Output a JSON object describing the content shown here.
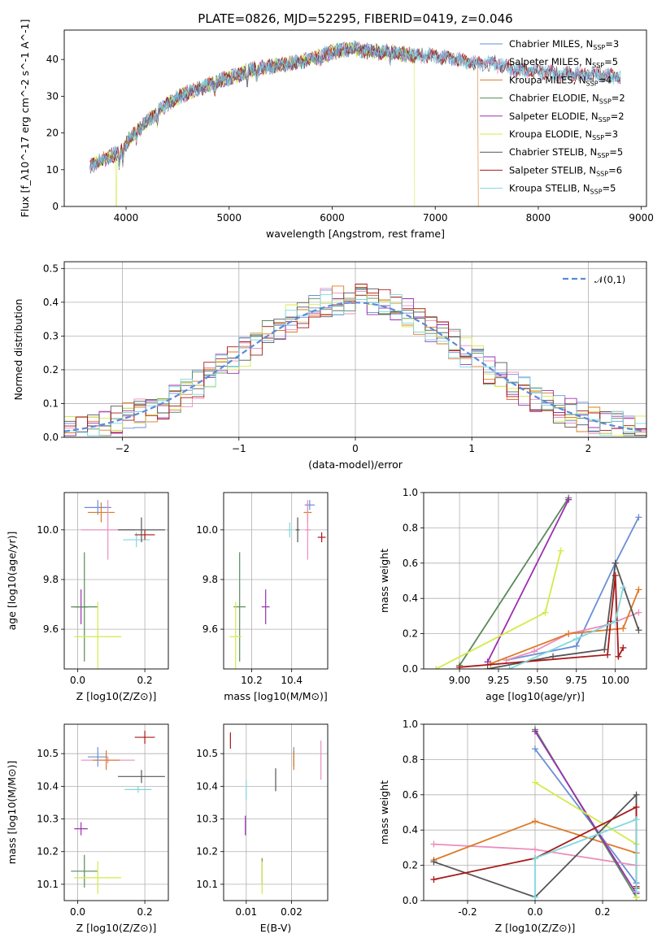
{
  "title": "PLATE=0826, MJD=52295, FIBERID=0419, z=0.046",
  "colors": {
    "chabrier_miles": "#6b8ed6",
    "salpeter_miles": "#ea8fbd",
    "kroupa_miles": "#dd7a28",
    "chabrier_elodie": "#5a8a5a",
    "salpeter_elodie": "#9b30b0",
    "kroupa_elodie": "#d4ea48",
    "chabrier_stelib": "#555555",
    "salpeter_stelib": "#a81818",
    "kroupa_stelib": "#7fd8de"
  },
  "models": [
    {
      "key": "chabrier_miles",
      "imf": "Chabrier",
      "lib": "MILES",
      "nssp": "3"
    },
    {
      "key": "salpeter_miles",
      "imf": "Salpeter",
      "lib": "MILES",
      "nssp": "5"
    },
    {
      "key": "kroupa_miles",
      "imf": "Kroupa",
      "lib": "MILES",
      "nssp": "4"
    },
    {
      "key": "chabrier_elodie",
      "imf": "Chabrier",
      "lib": "ELODIE",
      "nssp": "2"
    },
    {
      "key": "salpeter_elodie",
      "imf": "Salpeter",
      "lib": "ELODIE",
      "nssp": "2"
    },
    {
      "key": "kroupa_elodie",
      "imf": "Kroupa",
      "lib": "ELODIE",
      "nssp": "3"
    },
    {
      "key": "chabrier_stelib",
      "imf": "Chabrier",
      "lib": "STELIB",
      "nssp": "5"
    },
    {
      "key": "salpeter_stelib",
      "imf": "Salpeter",
      "lib": "STELIB",
      "nssp": "6"
    },
    {
      "key": "kroupa_stelib",
      "imf": "Kroupa",
      "lib": "STELIB",
      "nssp": "5"
    }
  ],
  "chart_data": [
    {
      "type": "line",
      "xlabel": "wavelength [Angstrom, rest frame]",
      "ylabel": "Flux [f_λ10^-17 erg cm^-2 s^-1 A^-1]",
      "xlim": [
        3400,
        9050
      ],
      "ylim": [
        0,
        48
      ],
      "xticks": [
        4000,
        5000,
        6000,
        7000,
        8000,
        9000
      ],
      "yticks": [
        0,
        10,
        20,
        30,
        40
      ],
      "continuum": [
        [
          3650,
          11
        ],
        [
          3800,
          13
        ],
        [
          3950,
          15
        ],
        [
          4050,
          19
        ],
        [
          4200,
          23
        ],
        [
          4400,
          28
        ],
        [
          4600,
          31
        ],
        [
          4800,
          33
        ],
        [
          5000,
          35
        ],
        [
          5200,
          37
        ],
        [
          5400,
          38
        ],
        [
          5600,
          39
        ],
        [
          5800,
          40
        ],
        [
          6000,
          42
        ],
        [
          6200,
          43
        ],
        [
          6400,
          42
        ],
        [
          6600,
          42
        ],
        [
          6800,
          41
        ],
        [
          7000,
          41
        ],
        [
          7200,
          40
        ],
        [
          7400,
          39
        ],
        [
          7600,
          39
        ],
        [
          7800,
          37
        ],
        [
          8000,
          37
        ],
        [
          8200,
          36
        ],
        [
          8400,
          36
        ],
        [
          8600,
          36
        ],
        [
          8800,
          35
        ]
      ],
      "dropouts": [
        {
          "model": "kroupa_elodie",
          "x": 3905
        },
        {
          "model": "kroupa_elodie",
          "x": 6800
        },
        {
          "model": "kroupa_miles",
          "x": 7420
        }
      ],
      "model_end": {
        "chabrier_miles": 8800,
        "salpeter_miles": 8800,
        "kroupa_miles": 7420,
        "chabrier_elodie": 6800,
        "salpeter_elodie": 6800,
        "kroupa_elodie": 6800,
        "chabrier_stelib": 8800,
        "salpeter_stelib": 8800,
        "kroupa_stelib": 8800
      }
    },
    {
      "type": "histogram",
      "xlabel": "(data-model)/error",
      "ylabel": "Normed distribution",
      "xlim": [
        -2.5,
        2.5
      ],
      "ylim": [
        0,
        0.52
      ],
      "xticks": [
        -2,
        -1,
        0,
        1,
        2
      ],
      "yticks": [
        0.0,
        0.1,
        0.2,
        0.3,
        0.4,
        0.5
      ],
      "legend": "𝒩(0,1)",
      "legend_position": "top-right",
      "bin_width": 0.1
    },
    {
      "type": "scatter",
      "xlabel": "Z [log10(Z/Z⊙)]",
      "ylabel": "age  [log10(age/yr)]",
      "xlim": [
        -0.04,
        0.27
      ],
      "ylim": [
        9.44,
        10.15
      ],
      "xticks": [
        0.0,
        0.2
      ],
      "yticks": [
        9.6,
        9.8,
        10.0
      ],
      "points": [
        {
          "model": "chabrier_miles",
          "x": 0.06,
          "y": 10.09,
          "xerr": 0.04,
          "yerr": 0.03
        },
        {
          "model": "kroupa_miles",
          "x": 0.07,
          "y": 10.07,
          "xerr": 0.04,
          "yerr": 0.04
        },
        {
          "model": "salpeter_miles",
          "x": 0.09,
          "y": 10.0,
          "xerr": 0.08,
          "yerr": 0.12
        },
        {
          "model": "kroupa_stelib",
          "x": 0.175,
          "y": 9.96,
          "xerr": 0.04,
          "yerr": 0.03
        },
        {
          "model": "salpeter_stelib",
          "x": 0.2,
          "y": 9.98,
          "xerr": 0.03,
          "yerr": 0.02
        },
        {
          "model": "chabrier_stelib",
          "x": 0.19,
          "y": 10.0,
          "xerr": 0.07,
          "yerr": 0.05
        },
        {
          "model": "salpeter_elodie",
          "x": 0.01,
          "y": 9.69,
          "xerr": 0.02,
          "yerr": 0.07
        },
        {
          "model": "chabrier_elodie",
          "x": 0.02,
          "y": 9.69,
          "xerr": 0.04,
          "yerr": 0.22
        },
        {
          "model": "kroupa_elodie",
          "x": 0.06,
          "y": 9.57,
          "xerr": 0.07,
          "yerr": 0.14
        }
      ]
    },
    {
      "type": "scatter",
      "xlabel": "mass [log10(M/M⊙)]",
      "ylabel": "",
      "xlim": [
        10.06,
        10.58
      ],
      "ylim": [
        9.44,
        10.15
      ],
      "xticks": [
        10.2,
        10.4
      ],
      "yticks": [
        9.6,
        9.8,
        10.0
      ],
      "points": [
        {
          "model": "chabrier_miles",
          "x": 10.49,
          "y": 10.1,
          "xerr": 0.025,
          "yerr": 0.02
        },
        {
          "model": "kroupa_miles",
          "x": 10.48,
          "y": 10.07,
          "xerr": 0.02,
          "yerr": 0.04
        },
        {
          "model": "salpeter_miles",
          "x": 10.48,
          "y": 10.0,
          "xerr": 0.015,
          "yerr": 0.12
        },
        {
          "model": "kroupa_stelib",
          "x": 10.39,
          "y": 10.0,
          "xerr": 0.015,
          "yerr": 0.03
        },
        {
          "model": "chabrier_stelib",
          "x": 10.43,
          "y": 10.0,
          "xerr": 0.01,
          "yerr": 0.05
        },
        {
          "model": "salpeter_stelib",
          "x": 10.55,
          "y": 9.97,
          "xerr": 0.02,
          "yerr": 0.02
        },
        {
          "model": "salpeter_elodie",
          "x": 10.27,
          "y": 9.69,
          "xerr": 0.02,
          "yerr": 0.07
        },
        {
          "model": "chabrier_elodie",
          "x": 10.14,
          "y": 9.69,
          "xerr": 0.03,
          "yerr": 0.22
        },
        {
          "model": "kroupa_elodie",
          "x": 10.12,
          "y": 9.57,
          "xerr": 0.03,
          "yerr": 0.14
        }
      ]
    },
    {
      "type": "line",
      "xlabel": "age  [log10(age/yr)]",
      "ylabel": "mass weight",
      "xlim": [
        8.77,
        10.2
      ],
      "ylim": [
        0,
        1.0
      ],
      "xticks": [
        9.0,
        9.25,
        9.5,
        9.75,
        10.0
      ],
      "yticks": [
        0.0,
        0.2,
        0.4,
        0.6,
        0.8,
        1.0
      ],
      "series": [
        {
          "model": "chabrier_miles",
          "x": [
            9.3,
            9.75,
            10.0,
            10.15
          ],
          "y": [
            0.05,
            0.13,
            0.6,
            0.86
          ]
        },
        {
          "model": "salpeter_miles",
          "x": [
            9.3,
            9.48,
            9.7,
            9.95,
            10.15
          ],
          "y": [
            0.05,
            0.1,
            0.2,
            0.25,
            0.32
          ]
        },
        {
          "model": "kroupa_miles",
          "x": [
            9.2,
            9.7,
            10.05,
            10.15
          ],
          "y": [
            0.03,
            0.2,
            0.23,
            0.45
          ]
        },
        {
          "model": "chabrier_elodie",
          "x": [
            9.0,
            9.7
          ],
          "y": [
            0.02,
            0.97
          ]
        },
        {
          "model": "salpeter_elodie",
          "x": [
            9.18,
            9.7
          ],
          "y": [
            0.04,
            0.96
          ]
        },
        {
          "model": "kroupa_elodie",
          "x": [
            8.85,
            9.55,
            9.65
          ],
          "y": [
            0.0,
            0.32,
            0.67
          ]
        },
        {
          "model": "chabrier_stelib",
          "x": [
            9.18,
            9.6,
            9.93,
            10.0,
            10.15
          ],
          "y": [
            0.0,
            0.07,
            0.11,
            0.6,
            0.22
          ]
        },
        {
          "model": "salpeter_stelib",
          "x": [
            9.0,
            9.95,
            9.97,
            10.0,
            10.02,
            10.05
          ],
          "y": [
            0.01,
            0.08,
            0.27,
            0.53,
            0.07,
            0.12
          ]
        },
        {
          "model": "kroupa_stelib",
          "x": [
            9.32,
            9.75,
            10.0,
            10.05
          ],
          "y": [
            0.0,
            0.17,
            0.27,
            0.46
          ]
        }
      ]
    },
    {
      "type": "scatter",
      "xlabel": "Z [log10(Z/Z⊙)]",
      "ylabel": "mass [log10(M/M⊙)]",
      "xlim": [
        -0.04,
        0.27
      ],
      "ylim": [
        10.05,
        10.59
      ],
      "xticks": [
        0.0,
        0.2
      ],
      "yticks": [
        10.1,
        10.2,
        10.3,
        10.4,
        10.5
      ],
      "points": [
        {
          "model": "salpeter_stelib",
          "x": 0.2,
          "y": 10.55,
          "xerr": 0.03,
          "yerr": 0.02
        },
        {
          "model": "chabrier_miles",
          "x": 0.06,
          "y": 10.49,
          "xerr": 0.03,
          "yerr": 0.03
        },
        {
          "model": "salpeter_miles",
          "x": 0.09,
          "y": 10.48,
          "xerr": 0.08,
          "yerr": 0.01
        },
        {
          "model": "kroupa_miles",
          "x": 0.085,
          "y": 10.48,
          "xerr": 0.04,
          "yerr": 0.03
        },
        {
          "model": "chabrier_stelib",
          "x": 0.19,
          "y": 10.43,
          "xerr": 0.07,
          "yerr": 0.02
        },
        {
          "model": "kroupa_stelib",
          "x": 0.18,
          "y": 10.39,
          "xerr": 0.04,
          "yerr": 0.01
        },
        {
          "model": "salpeter_elodie",
          "x": 0.01,
          "y": 10.27,
          "xerr": 0.02,
          "yerr": 0.02
        },
        {
          "model": "chabrier_elodie",
          "x": 0.02,
          "y": 10.14,
          "xerr": 0.04,
          "yerr": 0.05
        },
        {
          "model": "kroupa_elodie",
          "x": 0.06,
          "y": 10.12,
          "xerr": 0.07,
          "yerr": 0.05
        }
      ]
    },
    {
      "type": "scatter",
      "xlabel": "E(B-V)",
      "ylabel": "",
      "xlim": [
        0.005,
        0.028
      ],
      "ylim": [
        10.05,
        10.59
      ],
      "xticks": [
        0.01,
        0.02
      ],
      "yticks": [
        10.1,
        10.2,
        10.3,
        10.4,
        10.5
      ],
      "points": [
        {
          "model": "salpeter_stelib",
          "x": 0.0065,
          "y": 10.54,
          "xerr": 0,
          "yerr": 0.025
        },
        {
          "model": "salpeter_miles",
          "x": 0.0265,
          "y": 10.48,
          "xerr": 0,
          "yerr": 0.06
        },
        {
          "model": "chabrier_miles",
          "x": 0.0205,
          "y": 10.49,
          "xerr": 0,
          "yerr": 0.03
        },
        {
          "model": "kroupa_miles",
          "x": 0.0205,
          "y": 10.48,
          "xerr": 0,
          "yerr": 0.03
        },
        {
          "model": "chabrier_stelib",
          "x": 0.0165,
          "y": 10.42,
          "xerr": 0,
          "yerr": 0.035
        },
        {
          "model": "kroupa_stelib",
          "x": 0.01,
          "y": 10.39,
          "xerr": 0,
          "yerr": 0.03
        },
        {
          "model": "salpeter_elodie",
          "x": 0.0098,
          "y": 10.28,
          "xerr": 0,
          "yerr": 0.03
        },
        {
          "model": "chabrier_elodie",
          "x": 0.0135,
          "y": 10.14,
          "xerr": 0,
          "yerr": 0.04
        },
        {
          "model": "kroupa_elodie",
          "x": 0.0135,
          "y": 10.12,
          "xerr": 0,
          "yerr": 0.05
        }
      ]
    },
    {
      "type": "line",
      "xlabel": "Z [log10(Z/Z⊙)]",
      "ylabel": "mass weight",
      "xlim": [
        -0.33,
        0.33
      ],
      "ylim": [
        0,
        1.0
      ],
      "xticks": [
        -0.2,
        0.0,
        0.2
      ],
      "yticks": [
        0.0,
        0.2,
        0.4,
        0.6,
        0.8,
        1.0
      ],
      "series": [
        {
          "model": "chabrier_miles",
          "x": [
            0.0,
            0.3,
            0.3
          ],
          "y": [
            0.86,
            0.1,
            0.04
          ]
        },
        {
          "model": "salpeter_miles",
          "x": [
            -0.3,
            0.0,
            0.3,
            0.3
          ],
          "y": [
            0.32,
            0.29,
            0.2,
            0.02
          ]
        },
        {
          "model": "kroupa_miles",
          "x": [
            -0.3,
            0.0,
            0.3,
            0.3
          ],
          "y": [
            0.23,
            0.45,
            0.27,
            0.05
          ]
        },
        {
          "model": "chabrier_elodie",
          "x": [
            0.0,
            0.3
          ],
          "y": [
            0.97,
            0.02
          ]
        },
        {
          "model": "salpeter_elodie",
          "x": [
            0.0,
            0.3
          ],
          "y": [
            0.96,
            0.04
          ]
        },
        {
          "model": "kroupa_elodie",
          "x": [
            0.0,
            0.3,
            0.3
          ],
          "y": [
            0.67,
            0.32,
            0.02
          ]
        },
        {
          "model": "chabrier_stelib",
          "x": [
            -0.3,
            0.0,
            0.3,
            0.3
          ],
          "y": [
            0.22,
            0.02,
            0.6,
            0.07
          ]
        },
        {
          "model": "salpeter_stelib",
          "x": [
            -0.3,
            0.0,
            0.3,
            0.3
          ],
          "y": [
            0.12,
            0.24,
            0.53,
            0.08
          ]
        },
        {
          "model": "kroupa_stelib",
          "x": [
            0.0,
            0.0,
            0.3,
            0.3
          ],
          "y": [
            0.02,
            0.24,
            0.46,
            0.05
          ]
        }
      ]
    }
  ]
}
